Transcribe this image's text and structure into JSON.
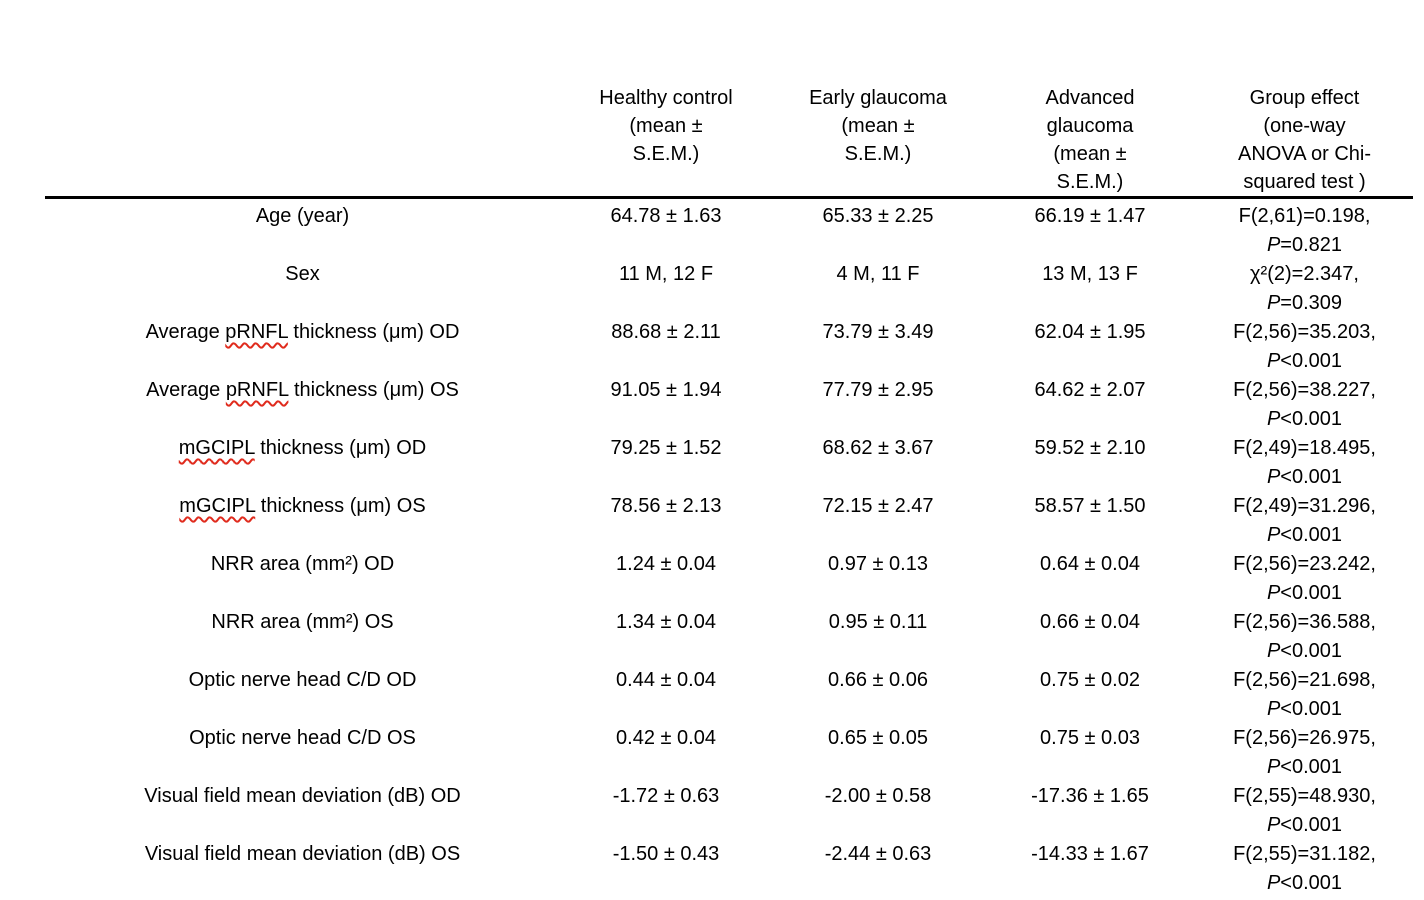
{
  "document": {
    "background_color": "#ffffff",
    "text_color": "#000000",
    "spellcheck_underline_color": "#e02b1d",
    "header_rule_color": "#000000"
  },
  "table": {
    "headers": [
      {
        "id": "measure",
        "lines": [
          ""
        ]
      },
      {
        "id": "healthy-control",
        "lines": [
          "Healthy control",
          "(mean ±",
          "S.E.M.)"
        ]
      },
      {
        "id": "early-glaucoma",
        "lines": [
          "Early glaucoma",
          "(mean ±",
          "S.E.M.)"
        ]
      },
      {
        "id": "advanced-glaucoma",
        "lines": [
          "Advanced",
          "glaucoma",
          "(mean ±",
          "S.E.M.)"
        ]
      },
      {
        "id": "group-effect",
        "lines": [
          "Group effect",
          "(one-way",
          "ANOVA or Chi-",
          "squared test )"
        ]
      }
    ],
    "rows": [
      {
        "label": "Age (year)",
        "misspelled": [],
        "values": [
          "64.78 ± 1.63",
          "65.33 ± 2.25",
          "66.19 ± 1.47"
        ],
        "stat": "F(2,61)=0.198,",
        "p_italic": "P",
        "p_value": "=0.821"
      },
      {
        "label": "Sex",
        "misspelled": [],
        "values": [
          "11 M, 12 F",
          "4 M, 11 F",
          "13 M, 13 F"
        ],
        "stat": "χ²(2)=2.347,",
        "p_italic": "P",
        "p_value": "=0.309"
      },
      {
        "label": "Average pRNFL thickness (μm) OD",
        "misspelled": [
          "pRNFL"
        ],
        "values": [
          "88.68 ± 2.11",
          "73.79 ± 3.49",
          "62.04 ± 1.95"
        ],
        "stat": "F(2,56)=35.203,",
        "p_italic": "P",
        "p_value": "<0.001"
      },
      {
        "label": "Average pRNFL thickness (μm) OS",
        "misspelled": [
          "pRNFL"
        ],
        "values": [
          "91.05 ± 1.94",
          "77.79 ± 2.95",
          "64.62 ± 2.07"
        ],
        "stat": "F(2,56)=38.227,",
        "p_italic": "P",
        "p_value": "<0.001"
      },
      {
        "label": "mGCIPL thickness (μm) OD",
        "misspelled": [
          "mGCIPL"
        ],
        "values": [
          "79.25 ± 1.52",
          "68.62 ± 3.67",
          "59.52 ± 2.10"
        ],
        "stat": "F(2,49)=18.495,",
        "p_italic": "P",
        "p_value": "<0.001"
      },
      {
        "label": "mGCIPL thickness (μm) OS",
        "misspelled": [
          "mGCIPL"
        ],
        "values": [
          "78.56 ± 2.13",
          "72.15 ± 2.47",
          "58.57 ± 1.50"
        ],
        "stat": "F(2,49)=31.296,",
        "p_italic": "P",
        "p_value": "<0.001"
      },
      {
        "label": "NRR area (mm²) OD",
        "misspelled": [],
        "values": [
          "1.24 ± 0.04",
          "0.97 ± 0.13",
          "0.64 ± 0.04"
        ],
        "stat": "F(2,56)=23.242,",
        "p_italic": "P",
        "p_value": "<0.001"
      },
      {
        "label": "NRR area (mm²) OS",
        "misspelled": [],
        "values": [
          "1.34 ± 0.04",
          "0.95 ± 0.11",
          "0.66 ± 0.04"
        ],
        "stat": "F(2,56)=36.588,",
        "p_italic": "P",
        "p_value": "<0.001"
      },
      {
        "label": "Optic nerve head C/D OD",
        "misspelled": [],
        "values": [
          "0.44 ± 0.04",
          "0.66 ± 0.06",
          "0.75 ± 0.02"
        ],
        "stat": "F(2,56)=21.698,",
        "p_italic": "P",
        "p_value": "<0.001"
      },
      {
        "label": "Optic nerve head C/D OS",
        "misspelled": [],
        "values": [
          "0.42 ± 0.04",
          "0.65 ± 0.05",
          "0.75 ± 0.03"
        ],
        "stat": "F(2,56)=26.975,",
        "p_italic": "P",
        "p_value": "<0.001"
      },
      {
        "label": "Visual field mean deviation (dB) OD",
        "misspelled": [],
        "values": [
          "-1.72 ± 0.63",
          "-2.00 ± 0.58",
          "-17.36 ± 1.65"
        ],
        "stat": "F(2,55)=48.930,",
        "p_italic": "P",
        "p_value": "<0.001"
      },
      {
        "label": "Visual field mean deviation (dB) OS",
        "misspelled": [],
        "values": [
          "-1.50 ± 0.43",
          "-2.44 ± 0.63",
          "-14.33 ± 1.67"
        ],
        "stat": "F(2,55)=31.182,",
        "p_italic": "P",
        "p_value": "<0.001"
      }
    ]
  }
}
